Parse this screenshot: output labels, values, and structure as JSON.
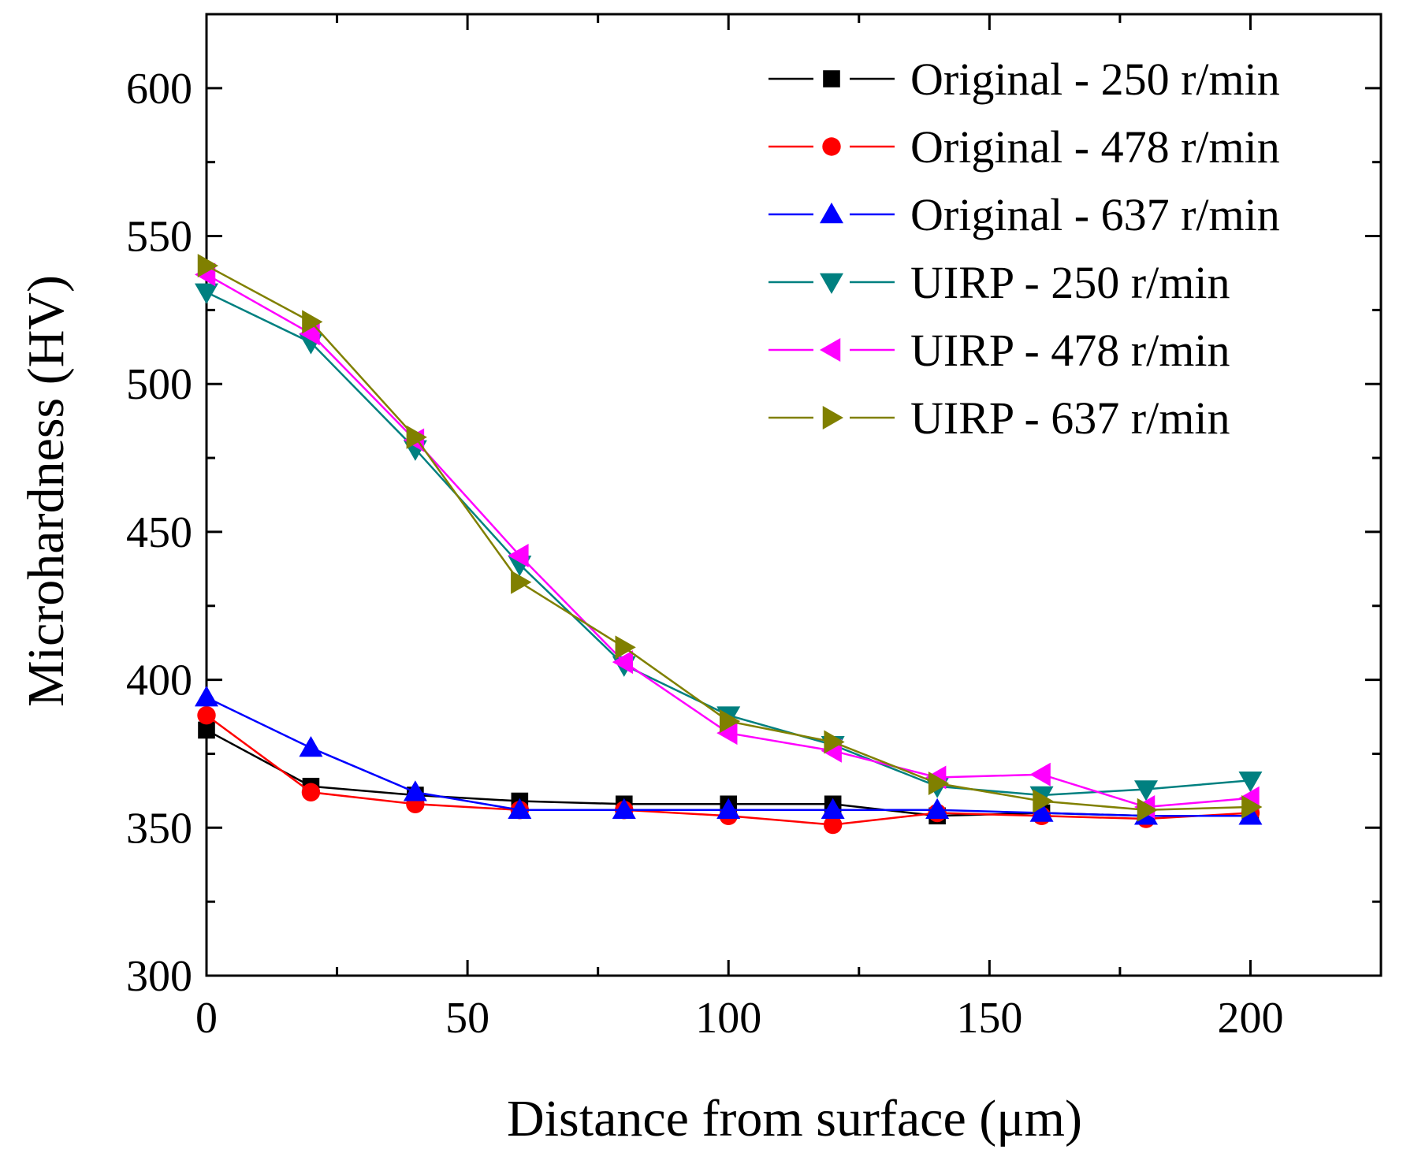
{
  "chart_data": {
    "type": "line",
    "title": "",
    "xlabel": "Distance from surface (μm)",
    "ylabel": "Microhardness (HV)",
    "xlim": [
      0,
      225
    ],
    "ylim": [
      300,
      625
    ],
    "xticks": [
      0,
      50,
      100,
      150,
      200
    ],
    "yticks": [
      300,
      350,
      400,
      450,
      500,
      550,
      600
    ],
    "xtick_labels": [
      "0",
      "50",
      "100",
      "150",
      "200"
    ],
    "ytick_labels": [
      "300",
      "350",
      "400",
      "450",
      "500",
      "550",
      "600"
    ],
    "legend_position": "top-right",
    "x": [
      0,
      20,
      40,
      60,
      80,
      100,
      120,
      140,
      160,
      180,
      200
    ],
    "series": [
      {
        "name": "Original - 250 r/min",
        "color": "#000000",
        "marker": "square",
        "values": [
          383,
          364,
          361,
          359,
          358,
          358,
          358,
          354,
          355,
          354,
          354
        ]
      },
      {
        "name": "Original - 478 r/min",
        "color": "#ff0000",
        "marker": "circle",
        "values": [
          388,
          362,
          358,
          356,
          356,
          354,
          351,
          355,
          354,
          353,
          355
        ]
      },
      {
        "name": "Original - 637 r/min",
        "color": "#0000ff",
        "marker": "triangle-up",
        "values": [
          394,
          377,
          362,
          356,
          356,
          356,
          356,
          356,
          355,
          354,
          354
        ]
      },
      {
        "name": "UIRP - 250 r/min",
        "color": "#008080",
        "marker": "triangle-down",
        "values": [
          531,
          514,
          478,
          439,
          405,
          388,
          378,
          364,
          361,
          363,
          366
        ]
      },
      {
        "name": "UIRP - 478 r/min",
        "color": "#ff00ff",
        "marker": "triangle-left",
        "values": [
          537,
          517,
          481,
          442,
          406,
          382,
          376,
          367,
          368,
          357,
          360
        ]
      },
      {
        "name": "UIRP - 637 r/min",
        "color": "#808000",
        "marker": "triangle-right",
        "values": [
          540,
          521,
          482,
          433,
          411,
          386,
          379,
          365,
          359,
          356,
          357
        ]
      }
    ]
  }
}
